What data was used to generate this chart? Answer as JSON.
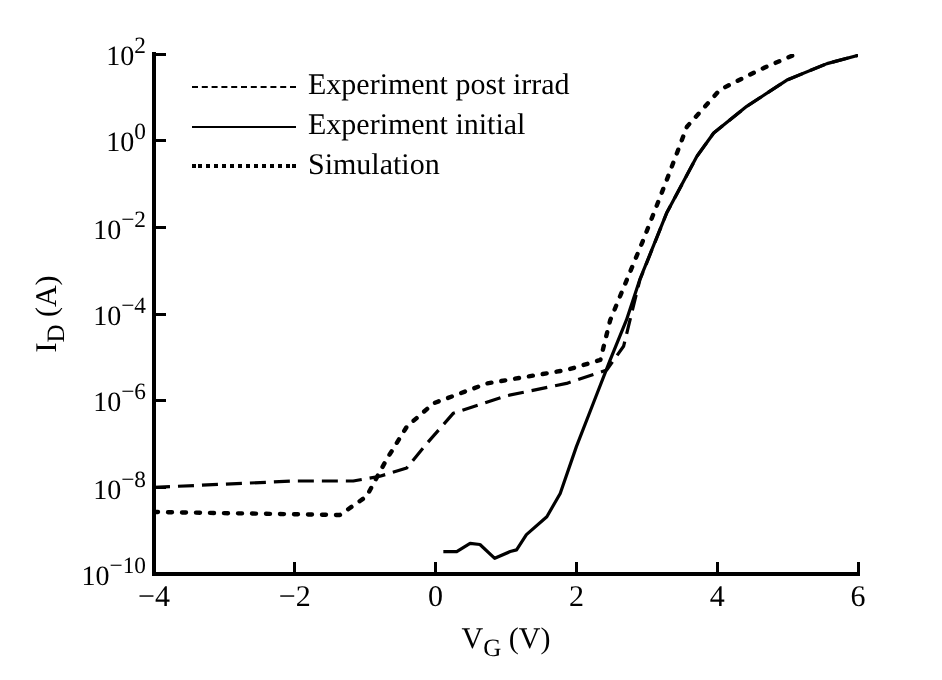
{
  "chart_data": {
    "type": "line",
    "xlabel": "V$_{G}$ (V)",
    "ylabel": "I$_{D}$ (A)",
    "log": "y",
    "grid": false,
    "legend": "top left",
    "marker": "none",
    "xlim": [
      -4,
      6
    ],
    "xticks": [
      {
        "value": -4,
        "label": "−4"
      },
      {
        "value": -2,
        "label": "−2"
      },
      0,
      2,
      4,
      6
    ],
    "ylim": [
      1e-10,
      100
    ],
    "yticks": [
      {
        "value": 1e-10,
        "label": "10$^{−10}$"
      },
      {
        "value": 1e-08,
        "label": "10$^{−8}$"
      },
      {
        "value": 1e-06,
        "label": "10$^{−6}$"
      },
      {
        "value": 0.0001,
        "label": "10$^{−4}$"
      },
      {
        "value": 0.01,
        "label": "10$^{−2}$"
      },
      {
        "value": 1,
        "label": "10$^{0}$"
      },
      {
        "value": 100,
        "label": "10$^{2}$"
      }
    ],
    "series": [
      {
        "name": "Experiment post irrad",
        "color": "#000000",
        "line_style": "dashed",
        "x": [
          -4,
          -2,
          -1.17,
          -0.79,
          -0.41,
          -0.13,
          0.25,
          1.01,
          1.86,
          2.43,
          2.67,
          2.9,
          3.28,
          3.71,
          3.95,
          4.42,
          4.99,
          5.56,
          6.0
        ],
        "values": [
          1e-08,
          1.4e-08,
          1.4e-08,
          1.8e-08,
          2.8e-08,
          1e-07,
          5.1e-07,
          1.3e-06,
          2.5e-06,
          5.1e-06,
          1.8e-05,
          0.0006,
          0.021,
          0.43,
          1.5,
          6.2,
          25,
          60,
          93
        ]
      },
      {
        "name": "Experiment initial",
        "color": "#000000",
        "line_style": "solid",
        "x": [
          0.11,
          0.3,
          0.49,
          0.63,
          0.84,
          1.06,
          1.15,
          1.29,
          1.58,
          1.77,
          2.0,
          2.24,
          2.48,
          2.71,
          2.9,
          3.28,
          3.71,
          3.95,
          4.42,
          4.99,
          5.56,
          6.0
        ],
        "values": [
          3.3e-10,
          3.3e-10,
          5.1e-10,
          4.8e-10,
          2.3e-10,
          3.3e-10,
          3.6e-10,
          8.1e-10,
          2.1e-09,
          7.2e-09,
          8.7e-08,
          8.7e-07,
          8.7e-06,
          7.2e-05,
          0.00062,
          0.021,
          0.43,
          1.5,
          6.2,
          25,
          60,
          93
        ]
      },
      {
        "name": "Simulation",
        "color": "#000000",
        "line_style": "dotted",
        "x": [
          -4,
          -1.36,
          -0.98,
          -0.7,
          -0.41,
          -0.03,
          0.73,
          1.86,
          2.34,
          2.48,
          2.95,
          3.28,
          3.57,
          4.04,
          4.6,
          5.12
        ],
        "values": [
          2.7e-09,
          2.3e-09,
          6.2e-09,
          4.3e-08,
          2.5e-07,
          8.7e-07,
          2.5e-06,
          5.1e-06,
          8.7e-06,
          7.2e-05,
          0.0051,
          0.12,
          2.1,
          15,
          43,
          100
        ]
      }
    ]
  }
}
